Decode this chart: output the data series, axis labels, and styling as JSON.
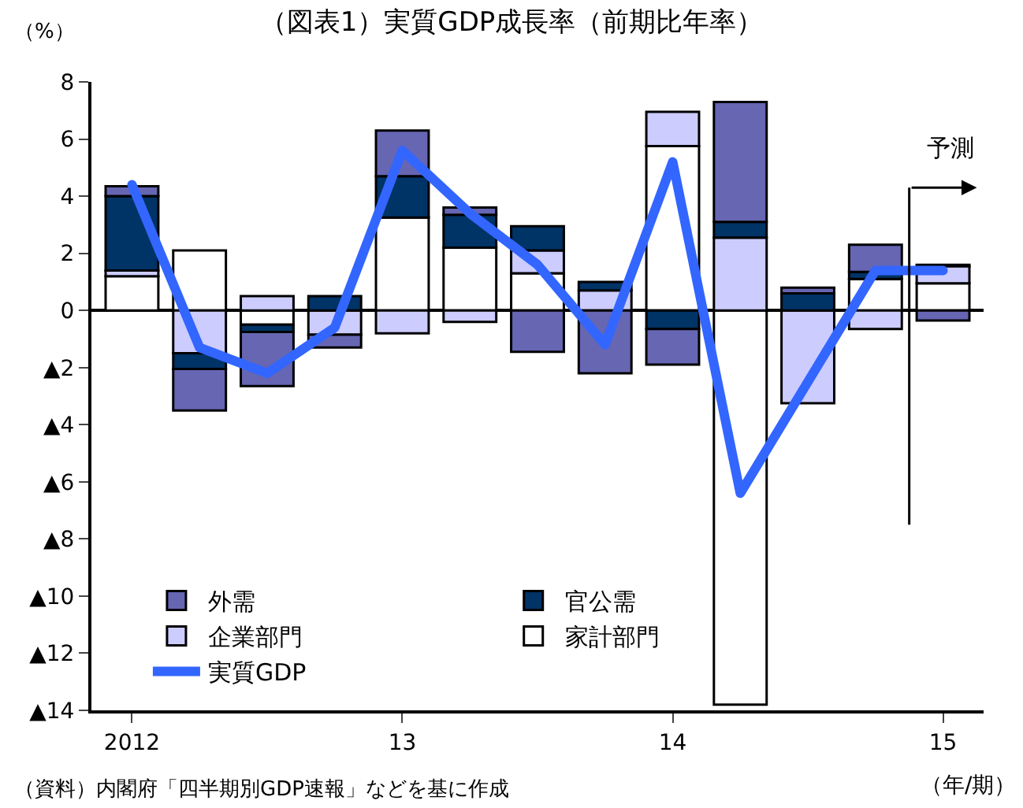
{
  "chart_data": {
    "type": "bar",
    "stacked": true,
    "title": "（図表1）実質GDP成長率（前期比年率）",
    "ylabel": "（%）",
    "xlabel": "（年/期）",
    "categories": [
      "2012",
      null,
      null,
      null,
      "13",
      null,
      null,
      null,
      "14",
      null,
      null,
      null,
      "15"
    ],
    "ylim": [
      -14,
      8
    ],
    "yticks": [
      8,
      6,
      4,
      2,
      0,
      {
        "value": -2,
        "label": "▲2"
      },
      {
        "value": -4,
        "label": "▲4"
      },
      {
        "value": -6,
        "label": "▲6"
      },
      {
        "value": -8,
        "label": "▲8"
      },
      {
        "value": -10,
        "label": "▲10"
      },
      {
        "value": -12,
        "label": "▲12"
      },
      {
        "value": -14,
        "label": "▲14"
      }
    ],
    "series": [
      {
        "name": "家計部門",
        "color": "#ffffff",
        "values": [
          1.2,
          2.1,
          -0.5,
          null,
          3.25,
          2.2,
          1.3,
          null,
          5.75,
          -13.8,
          null,
          1.1,
          0.95
        ]
      },
      {
        "name": "企業部門",
        "color": "#ccccff",
        "values": [
          0.2,
          -1.5,
          0.5,
          -0.85,
          -0.8,
          -0.4,
          0.8,
          0.7,
          1.2,
          2.55,
          -3.25,
          -0.65,
          0.6
        ]
      },
      {
        "name": "官公需",
        "color": "#003366",
        "values": [
          2.6,
          -0.55,
          -0.25,
          0.5,
          1.45,
          1.15,
          0.85,
          0.3,
          -0.65,
          0.55,
          0.6,
          0.25,
          0.05
        ]
      },
      {
        "name": "外需",
        "color": "#6666b3",
        "values": [
          0.35,
          -1.45,
          -1.9,
          -0.45,
          1.6,
          0.25,
          -1.45,
          -2.2,
          -1.25,
          4.2,
          0.2,
          0.95,
          -0.35
        ]
      },
      {
        "name": "実質GDP",
        "type": "line",
        "color": "#3366ff",
        "values": [
          4.4,
          -1.3,
          -2.2,
          -0.6,
          5.6,
          3.4,
          1.6,
          -1.2,
          5.2,
          -6.4,
          -2.5,
          1.4,
          1.4
        ]
      }
    ],
    "annotations": [
      "予測",
      "（資料）内閣府「四半期別GDP速報」などを基に作成"
    ],
    "legend": "bottom left",
    "marker": "none",
    "line_style": "solid"
  }
}
